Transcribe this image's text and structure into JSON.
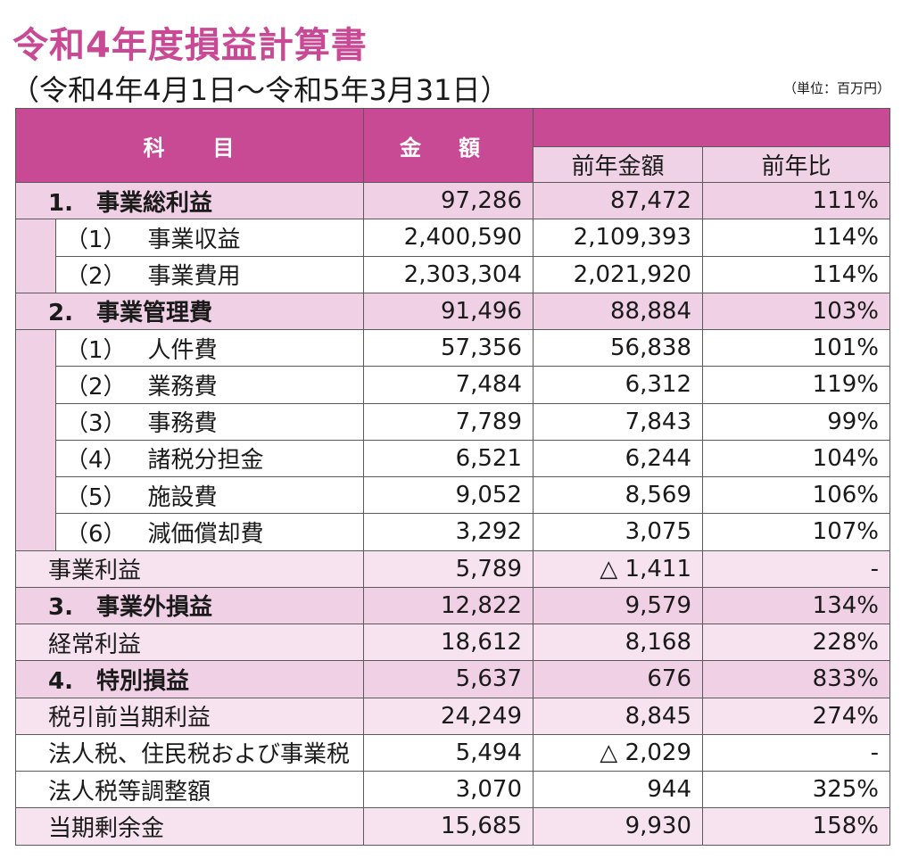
{
  "title": "令和4年度損益計算書",
  "period": "（令和4年4月1日～令和5年3月31日）",
  "unit": "（単位：百万円）",
  "header": {
    "subject": "科　　目",
    "amount_a": "金",
    "amount_b": "額",
    "prev_amount": "前年金額",
    "prev_ratio": "前年比"
  },
  "rows": [
    {
      "no": "1.",
      "label": "事業総利益",
      "amount": "97,286",
      "prev": "87,472",
      "ratio": "111%"
    },
    {
      "no": "（1）",
      "label": "事業収益",
      "amount": "2,400,590",
      "prev": "2,109,393",
      "ratio": "114%"
    },
    {
      "no": "（2）",
      "label": "事業費用",
      "amount": "2,303,304",
      "prev": "2,021,920",
      "ratio": "114%"
    },
    {
      "no": "2.",
      "label": "事業管理費",
      "amount": "91,496",
      "prev": "88,884",
      "ratio": "103%"
    },
    {
      "no": "（1）",
      "label": "人件費",
      "amount": "57,356",
      "prev": "56,838",
      "ratio": "101%"
    },
    {
      "no": "（2）",
      "label": "業務費",
      "amount": "7,484",
      "prev": "6,312",
      "ratio": "119%"
    },
    {
      "no": "（3）",
      "label": "事務費",
      "amount": "7,789",
      "prev": "7,843",
      "ratio": "99%"
    },
    {
      "no": "（4）",
      "label": "諸税分担金",
      "amount": "6,521",
      "prev": "6,244",
      "ratio": "104%"
    },
    {
      "no": "（5）",
      "label": "施設費",
      "amount": "9,052",
      "prev": "8,569",
      "ratio": "106%"
    },
    {
      "no": "（6）",
      "label": "減価償却費",
      "amount": "3,292",
      "prev": "3,075",
      "ratio": "107%"
    },
    {
      "label": "事業利益",
      "amount": "5,789",
      "prev": "△ 1,411",
      "ratio": "-"
    },
    {
      "no": "3.",
      "label": "事業外損益",
      "amount": "12,822",
      "prev": "9,579",
      "ratio": "134%"
    },
    {
      "label": "経常利益",
      "amount": "18,612",
      "prev": "8,168",
      "ratio": "228%"
    },
    {
      "no": "4.",
      "label": "特別損益",
      "amount": "5,637",
      "prev": "676",
      "ratio": "833%"
    },
    {
      "label": "税引前当期利益",
      "amount": "24,249",
      "prev": "8,845",
      "ratio": "274%"
    },
    {
      "label": "法人税、住民税および事業税",
      "amount": "5,494",
      "prev": "△ 2,029",
      "ratio": "-"
    },
    {
      "label": "法人税等調整額",
      "amount": "3,070",
      "prev": "944",
      "ratio": "325%"
    },
    {
      "label": "当期剰余金",
      "amount": "15,685",
      "prev": "9,930",
      "ratio": "158%"
    }
  ],
  "colors": {
    "accent": "#c94a94",
    "header_sub_bg": "#f0d2e6",
    "row_pink": "#efd0e4",
    "row_pink_light": "#f6e3ef"
  }
}
